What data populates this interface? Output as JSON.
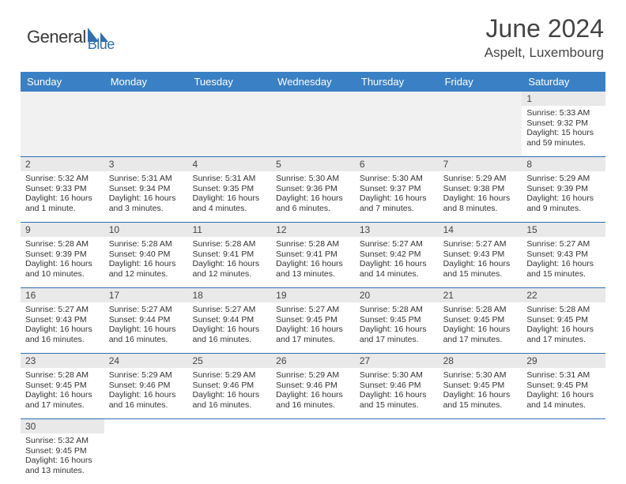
{
  "logo": {
    "general": "General",
    "blue": "Blue"
  },
  "title": "June 2024",
  "location": "Aspelt, Luxembourg",
  "dayNames": [
    "Sunday",
    "Monday",
    "Tuesday",
    "Wednesday",
    "Thursday",
    "Friday",
    "Saturday"
  ],
  "colors": {
    "headerBar": "#3a80c4",
    "weekDivider": "#2f6fb3",
    "dayNumBg": "#e9e9e9",
    "blankBg": "#f1f1f1",
    "logoBlue": "#2f6fb3"
  },
  "weeks": [
    [
      null,
      null,
      null,
      null,
      null,
      null,
      {
        "n": "1",
        "sr": "5:33 AM",
        "ss": "9:32 PM",
        "dl": "15 hours and 59 minutes."
      }
    ],
    [
      {
        "n": "2",
        "sr": "5:32 AM",
        "ss": "9:33 PM",
        "dl": "16 hours and 1 minute."
      },
      {
        "n": "3",
        "sr": "5:31 AM",
        "ss": "9:34 PM",
        "dl": "16 hours and 3 minutes."
      },
      {
        "n": "4",
        "sr": "5:31 AM",
        "ss": "9:35 PM",
        "dl": "16 hours and 4 minutes."
      },
      {
        "n": "5",
        "sr": "5:30 AM",
        "ss": "9:36 PM",
        "dl": "16 hours and 6 minutes."
      },
      {
        "n": "6",
        "sr": "5:30 AM",
        "ss": "9:37 PM",
        "dl": "16 hours and 7 minutes."
      },
      {
        "n": "7",
        "sr": "5:29 AM",
        "ss": "9:38 PM",
        "dl": "16 hours and 8 minutes."
      },
      {
        "n": "8",
        "sr": "5:29 AM",
        "ss": "9:39 PM",
        "dl": "16 hours and 9 minutes."
      }
    ],
    [
      {
        "n": "9",
        "sr": "5:28 AM",
        "ss": "9:39 PM",
        "dl": "16 hours and 10 minutes."
      },
      {
        "n": "10",
        "sr": "5:28 AM",
        "ss": "9:40 PM",
        "dl": "16 hours and 12 minutes."
      },
      {
        "n": "11",
        "sr": "5:28 AM",
        "ss": "9:41 PM",
        "dl": "16 hours and 12 minutes."
      },
      {
        "n": "12",
        "sr": "5:28 AM",
        "ss": "9:41 PM",
        "dl": "16 hours and 13 minutes."
      },
      {
        "n": "13",
        "sr": "5:27 AM",
        "ss": "9:42 PM",
        "dl": "16 hours and 14 minutes."
      },
      {
        "n": "14",
        "sr": "5:27 AM",
        "ss": "9:43 PM",
        "dl": "16 hours and 15 minutes."
      },
      {
        "n": "15",
        "sr": "5:27 AM",
        "ss": "9:43 PM",
        "dl": "16 hours and 15 minutes."
      }
    ],
    [
      {
        "n": "16",
        "sr": "5:27 AM",
        "ss": "9:43 PM",
        "dl": "16 hours and 16 minutes."
      },
      {
        "n": "17",
        "sr": "5:27 AM",
        "ss": "9:44 PM",
        "dl": "16 hours and 16 minutes."
      },
      {
        "n": "18",
        "sr": "5:27 AM",
        "ss": "9:44 PM",
        "dl": "16 hours and 16 minutes."
      },
      {
        "n": "19",
        "sr": "5:27 AM",
        "ss": "9:45 PM",
        "dl": "16 hours and 17 minutes."
      },
      {
        "n": "20",
        "sr": "5:28 AM",
        "ss": "9:45 PM",
        "dl": "16 hours and 17 minutes."
      },
      {
        "n": "21",
        "sr": "5:28 AM",
        "ss": "9:45 PM",
        "dl": "16 hours and 17 minutes."
      },
      {
        "n": "22",
        "sr": "5:28 AM",
        "ss": "9:45 PM",
        "dl": "16 hours and 17 minutes."
      }
    ],
    [
      {
        "n": "23",
        "sr": "5:28 AM",
        "ss": "9:45 PM",
        "dl": "16 hours and 17 minutes."
      },
      {
        "n": "24",
        "sr": "5:29 AM",
        "ss": "9:46 PM",
        "dl": "16 hours and 16 minutes."
      },
      {
        "n": "25",
        "sr": "5:29 AM",
        "ss": "9:46 PM",
        "dl": "16 hours and 16 minutes."
      },
      {
        "n": "26",
        "sr": "5:29 AM",
        "ss": "9:46 PM",
        "dl": "16 hours and 16 minutes."
      },
      {
        "n": "27",
        "sr": "5:30 AM",
        "ss": "9:46 PM",
        "dl": "16 hours and 15 minutes."
      },
      {
        "n": "28",
        "sr": "5:30 AM",
        "ss": "9:45 PM",
        "dl": "16 hours and 15 minutes."
      },
      {
        "n": "29",
        "sr": "5:31 AM",
        "ss": "9:45 PM",
        "dl": "16 hours and 14 minutes."
      }
    ],
    [
      {
        "n": "30",
        "sr": "5:32 AM",
        "ss": "9:45 PM",
        "dl": "16 hours and 13 minutes."
      },
      null,
      null,
      null,
      null,
      null,
      null
    ]
  ],
  "labels": {
    "sunrise": "Sunrise:",
    "sunset": "Sunset:",
    "daylight": "Daylight:"
  }
}
